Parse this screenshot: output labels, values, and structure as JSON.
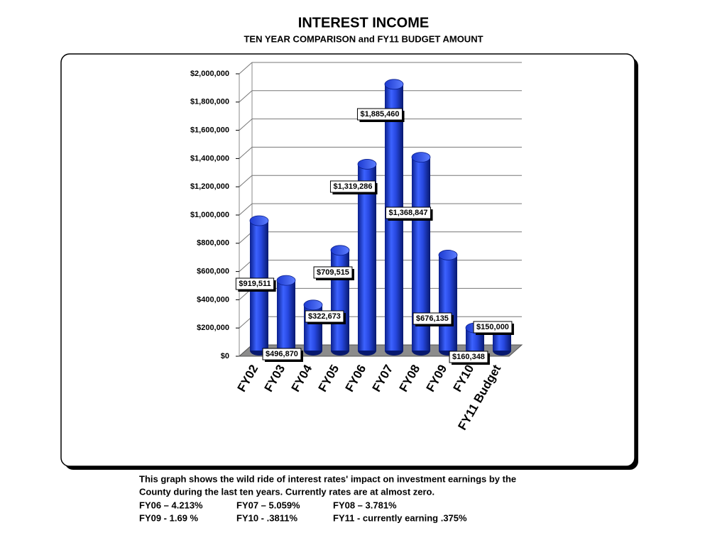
{
  "chart_data": {
    "type": "bar",
    "title": "INTEREST INCOME",
    "subtitle": "TEN YEAR COMPARISON and FY11 BUDGET AMOUNT",
    "categories": [
      "FY02",
      "FY03",
      "FY04",
      "FY05",
      "FY06",
      "FY07",
      "FY08",
      "FY09",
      "FY10",
      "FY11 Budget"
    ],
    "values": [
      919511,
      496870,
      322673,
      709515,
      1319286,
      1885460,
      1368847,
      676135,
      160348,
      150000
    ],
    "value_labels": [
      "$919,511",
      "$496,870",
      "$322,673",
      "$709,515",
      "$1,319,286",
      "$1,885,460",
      "$1,368,847",
      "$676,135",
      "$160,348",
      "$150,000"
    ],
    "color": "#2748e0",
    "ylim": [
      0,
      2000000
    ],
    "yticks": [
      {
        "value": 0,
        "label": "$0"
      },
      {
        "value": 200000,
        "label": "$200,000"
      },
      {
        "value": 400000,
        "label": "$400,000"
      },
      {
        "value": 600000,
        "label": "$600,000"
      },
      {
        "value": 800000,
        "label": "$800,000"
      },
      {
        "value": 1000000,
        "label": "$1,000,000"
      },
      {
        "value": 1200000,
        "label": "$1,200,000"
      },
      {
        "value": 1400000,
        "label": "$1,400,000"
      },
      {
        "value": 1600000,
        "label": "$1,600,000"
      },
      {
        "value": 1800000,
        "label": "$1,800,000"
      },
      {
        "value": 2000000,
        "label": "$2,000,000"
      }
    ],
    "grid": true
  },
  "notes": {
    "text": [
      "This graph shows the wild ride of interest rates' impact on investment earnings by the",
      "County during the last ten years.  Currently rates are at almost zero."
    ],
    "rates": [
      [
        "FY06 – 4.213%",
        "FY07 – 5.059%",
        "FY08 – 3.781%"
      ],
      [
        "FY09  - 1.69 %",
        "FY10 -  .3811%",
        "FY11 - currently earning .375%"
      ]
    ]
  }
}
